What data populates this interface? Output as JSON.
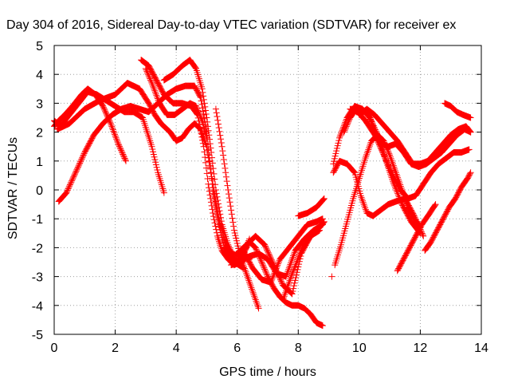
{
  "chart_data": {
    "type": "scatter",
    "title": "Day 304 of 2016, Sidereal Day-to-day VTEC variation (SDTVAR) for receiver ex",
    "xlabel": "GPS time / hours",
    "ylabel": "SDTVAR / TECUs",
    "xlim": [
      0,
      14
    ],
    "ylim": [
      -5,
      5
    ],
    "xticks": [
      0,
      2,
      4,
      6,
      8,
      10,
      12,
      14
    ],
    "yticks": [
      -5,
      -4,
      -3,
      -2,
      -1,
      0,
      1,
      2,
      3,
      4,
      5
    ],
    "grid": true,
    "marker": "+",
    "color": "#ff0000",
    "series": [
      {
        "x": [
          0.0,
          0.15,
          0.35,
          0.6,
          0.9,
          1.1,
          1.35,
          1.6,
          1.85,
          2.1,
          2.35
        ],
        "y": [
          2.2,
          2.4,
          2.6,
          2.9,
          3.3,
          3.5,
          3.3,
          2.9,
          2.3,
          1.6,
          1.0
        ]
      },
      {
        "x": [
          0.0,
          0.2,
          0.5,
          0.8,
          1.1,
          1.4,
          1.7,
          2.0,
          2.3,
          2.6,
          2.9,
          3.2,
          3.4,
          3.6
        ],
        "y": [
          2.4,
          2.2,
          2.6,
          3.0,
          3.4,
          3.3,
          3.1,
          2.9,
          2.7,
          2.7,
          2.5,
          1.5,
          0.6,
          -0.1
        ]
      },
      {
        "x": [
          0.15,
          0.4,
          0.7,
          1.0,
          1.3,
          1.6,
          1.9,
          2.2,
          2.5,
          2.8,
          3.1,
          3.4,
          3.7,
          4.0,
          4.3,
          4.6,
          4.8,
          5.0,
          5.2,
          5.4,
          5.6,
          5.9,
          6.2
        ],
        "y": [
          -0.4,
          -0.1,
          0.6,
          1.3,
          1.9,
          2.3,
          2.6,
          2.8,
          2.9,
          2.8,
          2.7,
          3.0,
          3.3,
          3.5,
          3.6,
          3.6,
          3.2,
          2.0,
          0.0,
          -1.2,
          -2.1,
          -2.5,
          -2.7
        ]
      },
      {
        "x": [
          0.1,
          0.5,
          1.0,
          1.5,
          2.0,
          2.4,
          2.8,
          3.1,
          3.3,
          3.5,
          3.8,
          4.0,
          4.2,
          4.4,
          4.6,
          4.8,
          5.0,
          5.2,
          5.4,
          5.6,
          5.8,
          6.1,
          6.4
        ],
        "y": [
          2.1,
          2.3,
          2.8,
          3.1,
          3.3,
          3.7,
          3.5,
          3.0,
          2.6,
          2.3,
          2.0,
          1.7,
          1.8,
          2.1,
          2.3,
          2.1,
          1.5,
          0.2,
          -1.0,
          -1.8,
          -2.2,
          -2.3,
          -2.4
        ]
      },
      {
        "x": [
          2.85,
          3.1,
          3.35,
          3.6,
          3.9,
          4.2,
          4.5,
          4.7,
          4.9,
          5.05,
          5.2,
          5.35,
          5.5,
          5.7,
          5.9,
          6.1,
          6.4
        ],
        "y": [
          4.5,
          4.3,
          3.8,
          3.3,
          3.0,
          3.0,
          2.9,
          2.6,
          1.5,
          0.2,
          -0.8,
          -1.6,
          -2.1,
          -2.4,
          -2.6,
          -2.5,
          -1.7
        ]
      },
      {
        "x": [
          3.6,
          3.9,
          4.2,
          4.45,
          4.65,
          4.85,
          5.0,
          5.15,
          5.3,
          5.5,
          5.7,
          5.9,
          6.1
        ],
        "y": [
          3.8,
          4.0,
          4.3,
          4.5,
          4.2,
          3.5,
          2.5,
          1.3,
          0.0,
          -1.2,
          -1.9,
          -2.4,
          -2.6
        ]
      },
      {
        "x": [
          3.0,
          3.2,
          3.45,
          3.7,
          3.95,
          4.2,
          4.45,
          4.65,
          4.85,
          5.0
        ],
        "y": [
          4.2,
          3.7,
          3.0,
          2.6,
          2.6,
          2.8,
          3.0,
          2.9,
          2.4,
          1.8
        ]
      },
      {
        "x": [
          5.3,
          5.5,
          5.7,
          5.9,
          6.1,
          6.3,
          6.5,
          6.7
        ],
        "y": [
          2.8,
          1.5,
          0.0,
          -1.4,
          -2.3,
          -2.9,
          -3.5,
          -4.1
        ]
      },
      {
        "x": [
          5.6,
          5.8,
          6.0,
          6.2,
          6.4,
          6.6,
          6.8,
          7.0,
          7.2,
          7.4,
          7.6,
          7.8,
          8.0,
          8.2,
          8.4,
          8.6,
          8.8
        ],
        "y": [
          -2.0,
          -2.3,
          -2.5,
          -2.2,
          -1.8,
          -2.0,
          -2.5,
          -3.0,
          -3.4,
          -3.7,
          -3.9,
          -4.0,
          -4.0,
          -4.1,
          -4.3,
          -4.6,
          -4.7
        ]
      },
      {
        "x": [
          5.8,
          6.1,
          6.4,
          6.7,
          7.0,
          7.3,
          7.6,
          7.9,
          8.2,
          8.5,
          8.8
        ],
        "y": [
          -2.6,
          -2.5,
          -2.3,
          -2.2,
          -2.4,
          -2.9,
          -3.0,
          -2.1,
          -1.7,
          -1.4,
          -1.2
        ]
      },
      {
        "x": [
          6.0,
          6.3,
          6.6,
          6.9,
          7.2,
          7.5,
          7.8,
          8.1,
          8.4,
          8.7
        ],
        "y": [
          -2.2,
          -1.9,
          -1.6,
          -1.9,
          -2.6,
          -3.3,
          -3.6,
          -2.2,
          -1.6,
          -1.4
        ]
      },
      {
        "x": [
          6.2,
          6.5,
          6.8,
          7.1,
          7.4,
          7.7,
          8.0,
          8.3,
          8.6,
          8.8
        ],
        "y": [
          -2.1,
          -2.7,
          -3.1,
          -3.2,
          -2.4,
          -2.0,
          -1.6,
          -1.2,
          -1.1,
          -1.0
        ]
      },
      {
        "x": [
          7.5,
          7.8,
          8.1,
          8.4,
          8.7,
          8.85
        ],
        "y": [
          -3.8,
          -2.9,
          -2.1,
          -1.6,
          -1.3,
          -1.1
        ]
      },
      {
        "x": [
          8.0,
          8.3,
          8.6,
          8.85
        ],
        "y": [
          -0.9,
          -0.8,
          -0.6,
          -0.3
        ]
      },
      {
        "x": [
          9.1
        ],
        "y": [
          -3.0
        ]
      },
      {
        "x": [
          9.15,
          9.35,
          9.6,
          9.85,
          10.05,
          10.25,
          10.45,
          10.7,
          10.95,
          11.2,
          11.5,
          11.8,
          12.1
        ],
        "y": [
          0.6,
          1.0,
          0.9,
          0.6,
          -0.2,
          -0.8,
          -0.9,
          -0.7,
          -0.5,
          -0.4,
          -0.3,
          -0.9,
          -1.6
        ]
      },
      {
        "x": [
          9.15,
          9.35,
          9.6,
          9.85,
          10.1,
          10.35,
          10.6,
          10.85,
          11.1,
          11.4,
          11.7,
          12.0
        ],
        "y": [
          0.9,
          1.8,
          2.5,
          2.9,
          2.8,
          2.5,
          1.9,
          1.1,
          0.3,
          -0.5,
          -1.1,
          -1.5
        ]
      },
      {
        "x": [
          9.5,
          9.7,
          9.9,
          10.1,
          10.35,
          10.6,
          10.85,
          11.1,
          11.35,
          11.6,
          11.85,
          12.1,
          12.35,
          12.6,
          12.85,
          13.1,
          13.35,
          13.6
        ],
        "y": [
          2.0,
          2.5,
          2.8,
          2.8,
          2.5,
          1.7,
          1.1,
          0.5,
          0.0,
          -0.3,
          -0.2,
          0.2,
          0.6,
          0.9,
          1.1,
          1.3,
          1.3,
          1.4
        ]
      },
      {
        "x": [
          9.7,
          9.95,
          10.2,
          10.45,
          10.7,
          10.95,
          11.2,
          11.45,
          11.7,
          11.95,
          12.2,
          12.45,
          12.7,
          12.95,
          13.2,
          13.45,
          13.65
        ],
        "y": [
          2.8,
          2.7,
          2.4,
          2.0,
          1.6,
          1.5,
          1.6,
          1.3,
          0.9,
          0.8,
          0.9,
          1.1,
          1.3,
          1.6,
          1.9,
          2.1,
          2.0
        ]
      },
      {
        "x": [
          10.0,
          10.25,
          10.5,
          10.75,
          11.0,
          11.25,
          11.5,
          11.75,
          12.0,
          12.25,
          12.5,
          12.75,
          13.0,
          13.25,
          13.5,
          13.65
        ],
        "y": [
          2.6,
          2.8,
          2.6,
          2.3,
          2.0,
          1.7,
          1.3,
          0.9,
          0.9,
          1.0,
          1.3,
          1.6,
          1.9,
          2.1,
          2.2,
          2.0
        ]
      },
      {
        "x": [
          9.2,
          9.4,
          9.6,
          9.8,
          10.0,
          10.2,
          10.4,
          10.6,
          10.8,
          11.0,
          11.2,
          11.4,
          11.6,
          11.8,
          12.0
        ],
        "y": [
          -2.6,
          -1.9,
          -1.1,
          -0.3,
          0.4,
          1.1,
          1.7,
          1.9,
          1.7,
          1.2,
          0.6,
          0.0,
          -0.6,
          -1.0,
          -1.3
        ]
      },
      {
        "x": [
          11.25,
          11.45,
          11.65,
          11.85,
          12.05,
          12.25,
          12.5
        ],
        "y": [
          -2.8,
          -2.4,
          -2.0,
          -1.6,
          -1.2,
          -0.9,
          -0.5
        ]
      },
      {
        "x": [
          12.15,
          12.35,
          12.55,
          12.75,
          12.95,
          13.15,
          13.35,
          13.55,
          13.65
        ],
        "y": [
          -2.1,
          -1.8,
          -1.4,
          -1.0,
          -0.6,
          -0.3,
          0.1,
          0.4,
          0.6
        ]
      },
      {
        "x": [
          12.8,
          13.0,
          13.2,
          13.4,
          13.65
        ],
        "y": [
          3.0,
          2.9,
          2.7,
          2.6,
          2.5
        ]
      }
    ]
  }
}
